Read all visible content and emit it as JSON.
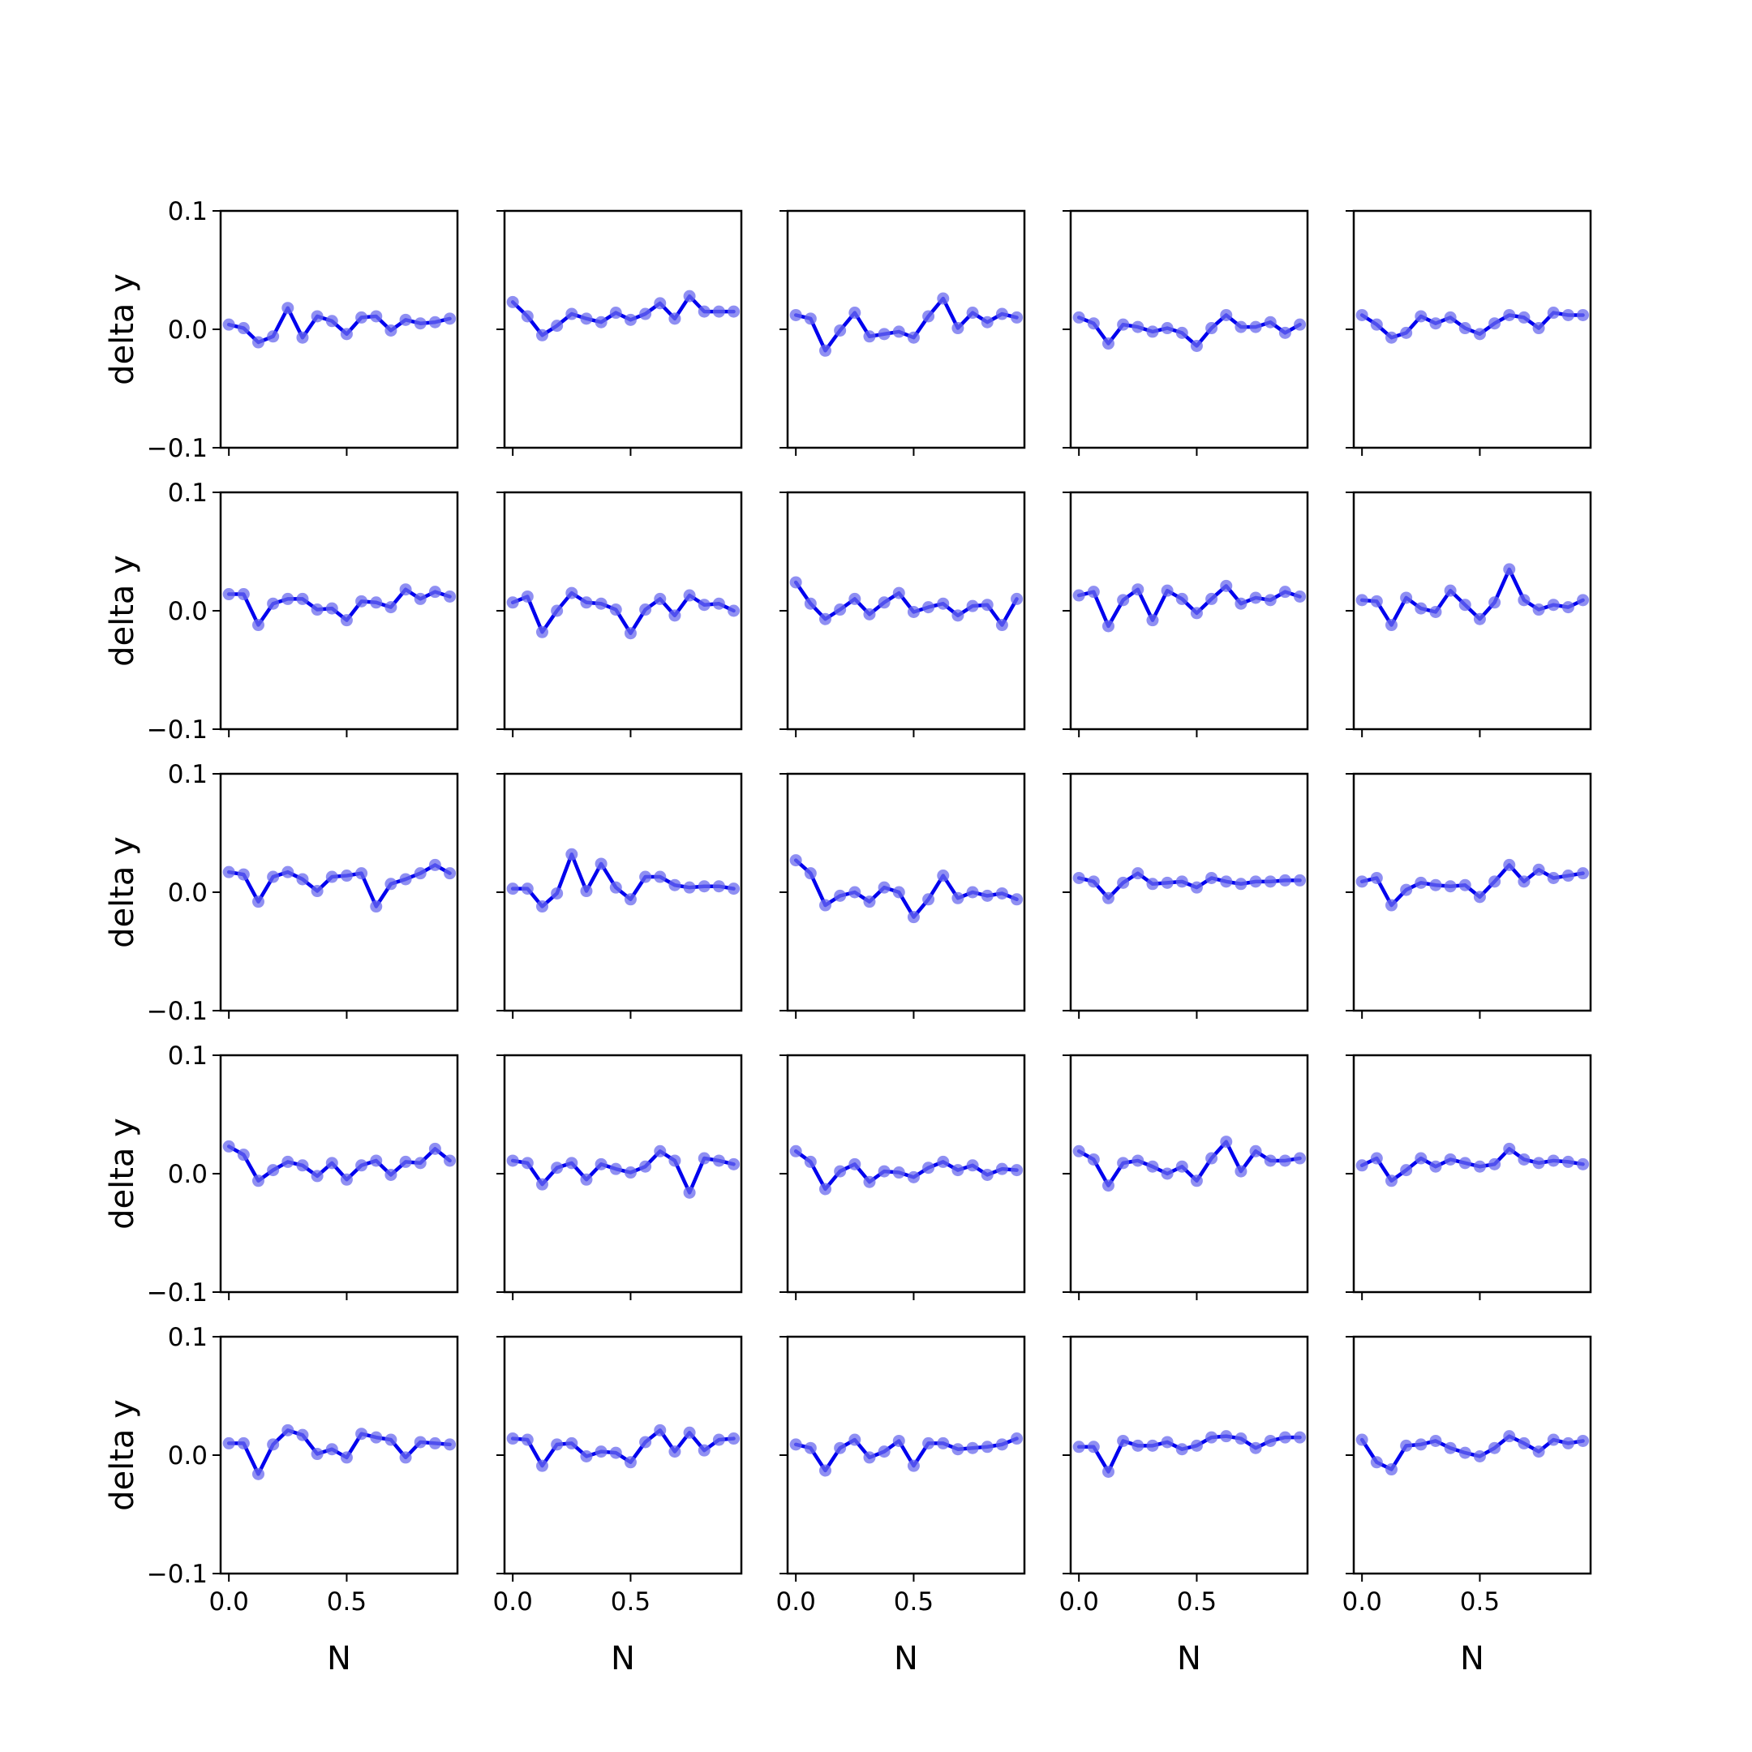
{
  "chart_data": {
    "type": "line",
    "layout": {
      "rows": 5,
      "cols": 5,
      "sharex": true,
      "sharey": true
    },
    "x": [
      0.0,
      0.0625,
      0.125,
      0.1875,
      0.25,
      0.3125,
      0.375,
      0.4375,
      0.5,
      0.5625,
      0.625,
      0.6875,
      0.75,
      0.8125,
      0.875,
      0.9375
    ],
    "xlim": [
      -0.035,
      0.97
    ],
    "ylim": [
      -0.1,
      0.1
    ],
    "xticks": [
      0.0,
      0.5
    ],
    "xtick_labels": [
      "0.0",
      "0.5"
    ],
    "yticks": [
      -0.1,
      0.0,
      0.1
    ],
    "ytick_labels": [
      "−0.1",
      "0.0",
      "0.1"
    ],
    "xlabel": "N",
    "ylabel": "delta y",
    "line_color": "#0000ee",
    "marker_color": "#6a6aee",
    "grid": false,
    "legend": false,
    "panels": [
      [
        [
          0.004,
          0.001,
          -0.011,
          -0.006,
          0.018,
          -0.007,
          0.011,
          0.007,
          -0.004,
          0.01,
          0.011,
          -0.001,
          0.008,
          0.005,
          0.006,
          0.009
        ],
        [
          0.023,
          0.011,
          -0.005,
          0.003,
          0.013,
          0.009,
          0.006,
          0.014,
          0.008,
          0.013,
          0.022,
          0.009,
          0.028,
          0.015,
          0.015,
          0.015
        ],
        [
          0.012,
          0.009,
          -0.018,
          -0.001,
          0.014,
          -0.006,
          -0.004,
          -0.002,
          -0.007,
          0.011,
          0.026,
          0.001,
          0.014,
          0.006,
          0.013,
          0.01
        ],
        [
          0.01,
          0.005,
          -0.012,
          0.004,
          0.002,
          -0.002,
          0.001,
          -0.003,
          -0.014,
          0.001,
          0.012,
          0.002,
          0.002,
          0.006,
          -0.003,
          0.004
        ],
        [
          0.012,
          0.004,
          -0.007,
          -0.003,
          0.011,
          0.005,
          0.01,
          0.001,
          -0.004,
          0.005,
          0.012,
          0.01,
          0.001,
          0.014,
          0.012,
          0.012
        ]
      ],
      [
        [
          0.014,
          0.014,
          -0.012,
          0.006,
          0.01,
          0.01,
          0.001,
          0.002,
          -0.008,
          0.008,
          0.007,
          0.003,
          0.018,
          0.01,
          0.016,
          0.012
        ],
        [
          0.007,
          0.012,
          -0.018,
          0.0,
          0.015,
          0.007,
          0.006,
          0.001,
          -0.019,
          0.001,
          0.01,
          -0.004,
          0.013,
          0.005,
          0.006,
          0.0
        ],
        [
          0.024,
          0.006,
          -0.007,
          0.001,
          0.01,
          -0.003,
          0.007,
          0.015,
          -0.001,
          0.003,
          0.006,
          -0.004,
          0.004,
          0.005,
          -0.012,
          0.01
        ],
        [
          0.013,
          0.016,
          -0.013,
          0.009,
          0.018,
          -0.008,
          0.017,
          0.01,
          -0.002,
          0.01,
          0.021,
          0.006,
          0.011,
          0.009,
          0.016,
          0.012
        ],
        [
          0.009,
          0.008,
          -0.012,
          0.011,
          0.002,
          -0.001,
          0.017,
          0.005,
          -0.007,
          0.007,
          0.035,
          0.009,
          0.001,
          0.005,
          0.003,
          0.009
        ]
      ],
      [
        [
          0.017,
          0.015,
          -0.008,
          0.013,
          0.017,
          0.011,
          0.001,
          0.013,
          0.014,
          0.016,
          -0.012,
          0.007,
          0.011,
          0.016,
          0.023,
          0.016
        ],
        [
          0.003,
          0.003,
          -0.012,
          -0.001,
          0.032,
          0.001,
          0.024,
          0.004,
          -0.006,
          0.013,
          0.013,
          0.006,
          0.004,
          0.005,
          0.005,
          0.003
        ],
        [
          0.027,
          0.016,
          -0.011,
          -0.003,
          0.0,
          -0.008,
          0.004,
          0.0,
          -0.021,
          -0.006,
          0.014,
          -0.005,
          0.0,
          -0.003,
          -0.001,
          -0.006
        ],
        [
          0.012,
          0.009,
          -0.005,
          0.008,
          0.016,
          0.007,
          0.008,
          0.009,
          0.004,
          0.012,
          0.009,
          0.007,
          0.009,
          0.009,
          0.01,
          0.01
        ],
        [
          0.009,
          0.012,
          -0.011,
          0.002,
          0.008,
          0.006,
          0.005,
          0.006,
          -0.004,
          0.009,
          0.023,
          0.009,
          0.019,
          0.012,
          0.014,
          0.016
        ]
      ],
      [
        [
          0.023,
          0.016,
          -0.006,
          0.003,
          0.01,
          0.007,
          -0.002,
          0.009,
          -0.005,
          0.007,
          0.011,
          -0.001,
          0.01,
          0.009,
          0.021,
          0.011
        ],
        [
          0.011,
          0.009,
          -0.009,
          0.005,
          0.009,
          -0.005,
          0.008,
          0.004,
          0.001,
          0.006,
          0.019,
          0.011,
          -0.016,
          0.013,
          0.011,
          0.008
        ],
        [
          0.019,
          0.01,
          -0.013,
          0.002,
          0.008,
          -0.007,
          0.002,
          0.001,
          -0.003,
          0.005,
          0.01,
          0.003,
          0.007,
          -0.001,
          0.004,
          0.003
        ],
        [
          0.019,
          0.012,
          -0.01,
          0.009,
          0.011,
          0.006,
          0.0,
          0.006,
          -0.006,
          0.013,
          0.027,
          0.002,
          0.019,
          0.011,
          0.011,
          0.013
        ],
        [
          0.007,
          0.013,
          -0.006,
          0.003,
          0.013,
          0.006,
          0.012,
          0.009,
          0.006,
          0.008,
          0.021,
          0.012,
          0.009,
          0.011,
          0.01,
          0.008
        ]
      ],
      [
        [
          0.01,
          0.01,
          -0.016,
          0.009,
          0.021,
          0.017,
          0.001,
          0.005,
          -0.002,
          0.018,
          0.015,
          0.013,
          -0.002,
          0.011,
          0.01,
          0.009
        ],
        [
          0.014,
          0.013,
          -0.009,
          0.009,
          0.01,
          -0.001,
          0.003,
          0.002,
          -0.006,
          0.011,
          0.021,
          0.003,
          0.019,
          0.004,
          0.013,
          0.014
        ],
        [
          0.009,
          0.006,
          -0.013,
          0.006,
          0.013,
          -0.002,
          0.003,
          0.012,
          -0.009,
          0.01,
          0.01,
          0.005,
          0.006,
          0.007,
          0.009,
          0.014
        ],
        [
          0.007,
          0.007,
          -0.014,
          0.012,
          0.008,
          0.008,
          0.011,
          0.005,
          0.008,
          0.015,
          0.016,
          0.014,
          0.006,
          0.012,
          0.015,
          0.015
        ],
        [
          0.013,
          -0.006,
          -0.012,
          0.008,
          0.009,
          0.012,
          0.006,
          0.002,
          -0.001,
          0.006,
          0.016,
          0.01,
          0.003,
          0.013,
          0.01,
          0.012
        ]
      ]
    ]
  }
}
